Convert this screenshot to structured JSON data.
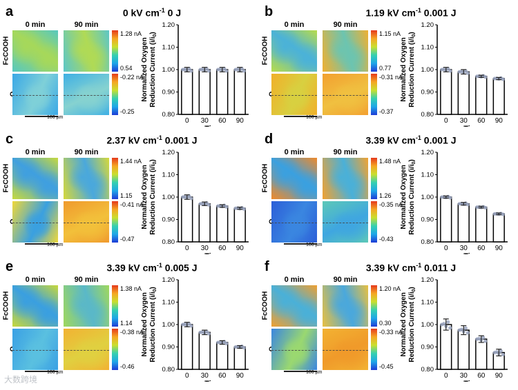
{
  "panels": [
    {
      "label": "a",
      "title_field": "0 kV cm",
      "title_rest": "0 J",
      "sup": "-1",
      "time_labels": [
        "0 min",
        "90 min"
      ],
      "top_row": "FcCOOH",
      "bottom_row": "O",
      "top_max": "1.28 nA",
      "top_min": "0.54",
      "bot_max": "-0.22 nA",
      "bot_min": "-0.25",
      "scale": "100 µm",
      "chart": {
        "type": "bar",
        "categories": [
          "0",
          "30",
          "60",
          "90"
        ],
        "values": [
          1.0,
          1.0,
          1.0,
          1.0
        ],
        "errors": [
          0.01,
          0.01,
          0.01,
          0.01
        ],
        "ylim": [
          0.8,
          1.2
        ],
        "yticks": [
          "0.80",
          "0.90",
          "1.00",
          "1.10",
          "1.20"
        ],
        "xlabel": "Time",
        "ylabel1": "Normalized Oxygen",
        "ylabel2": "Reduction Current (i/i",
        "ylabel3": ")"
      },
      "colors": {
        "t0a": "#56c8c0",
        "t0b": "#a6d85a",
        "t1a": "#5cc6c8",
        "t1b": "#b0da55",
        "b0a": "#3aa8e6",
        "b0b": "#7fd0d8",
        "b1a": "#3fb0e4",
        "b1b": "#86d2d0"
      }
    },
    {
      "label": "b",
      "title_field": "1.19 kV cm",
      "title_rest": "0.001 J",
      "sup": "-1",
      "time_labels": [
        "0 min",
        "90 min"
      ],
      "top_row": "FcCOOH",
      "bottom_row": "O",
      "top_max": "1.15 nA",
      "top_min": "0.77",
      "bot_max": "-0.31 nA",
      "bot_min": "-0.37",
      "scale": "100 µm",
      "chart": {
        "type": "bar",
        "categories": [
          "0",
          "30",
          "60",
          "90"
        ],
        "values": [
          1.0,
          0.99,
          0.97,
          0.96
        ],
        "errors": [
          0.01,
          0.01,
          0.005,
          0.005
        ],
        "ylim": [
          0.8,
          1.2
        ],
        "yticks": [
          "0.80",
          "0.90",
          "1.00",
          "1.10",
          "1.20"
        ],
        "xlabel": "Time",
        "ylabel1": "Normalized Oxygen",
        "ylabel2": "Reduction Current (i/i",
        "ylabel3": ")"
      },
      "colors": {
        "t0a": "#b8dc4a",
        "t0b": "#4bb2d8",
        "t1a": "#f0b030",
        "t1b": "#6cc4b0",
        "b0a": "#f0b02a",
        "b0b": "#d8d040",
        "b1a": "#f2a030",
        "b1b": "#f0c040"
      }
    },
    {
      "label": "c",
      "title_field": "2.37 kV cm",
      "title_rest": "0.001 J",
      "sup": "-1",
      "time_labels": [
        "0 min",
        "90 min"
      ],
      "top_row": "FcCOOH",
      "bottom_row": "O",
      "top_max": "1.44 nA",
      "top_min": "1.15",
      "bot_max": "-0.41 nA",
      "bot_min": "-0.47",
      "scale": "100 µm",
      "chart": {
        "type": "bar",
        "categories": [
          "0",
          "30",
          "60",
          "90"
        ],
        "values": [
          1.0,
          0.97,
          0.96,
          0.95
        ],
        "errors": [
          0.01,
          0.008,
          0.006,
          0.005
        ],
        "ylim": [
          0.8,
          1.2
        ],
        "yticks": [
          "0.80",
          "0.90",
          "1.00",
          "1.10",
          "1.20"
        ],
        "xlabel": "Time",
        "ylabel1": "Normalized Oxygen",
        "ylabel2": "Reduction Current (i/i",
        "ylabel3": ")"
      },
      "colors": {
        "t0a": "#c8da3c",
        "t0b": "#3f9fe0",
        "t1a": "#d6d83a",
        "t1b": "#4aa8dc",
        "b0a": "#f0d838",
        "b0b": "#3aa0e0",
        "b1a": "#f09a2e",
        "b1b": "#f2c03a"
      }
    },
    {
      "label": "d",
      "title_field": "3.39 kV cm",
      "title_rest": "0.001 J",
      "sup": "-1",
      "time_labels": [
        "0 min",
        "90 min"
      ],
      "top_row": "FcCOOH",
      "bottom_row": "O",
      "top_max": "1.48 nA",
      "top_min": "1.26",
      "bot_max": "-0.35 nA",
      "bot_min": "-0.43",
      "scale": "100 µm",
      "chart": {
        "type": "bar",
        "categories": [
          "0",
          "30",
          "60",
          "90"
        ],
        "values": [
          1.0,
          0.97,
          0.955,
          0.925
        ],
        "errors": [
          0.005,
          0.006,
          0.004,
          0.004
        ],
        "ylim": [
          0.8,
          1.2
        ],
        "yticks": [
          "0.80",
          "0.90",
          "1.00",
          "1.10",
          "1.20"
        ],
        "xlabel": "Time",
        "ylabel1": "Normalized Oxygen",
        "ylabel2": "Reduction Current (i/i",
        "ylabel3": ")"
      },
      "colors": {
        "t0a": "#f08a2a",
        "t0b": "#3aa0e0",
        "t1a": "#f2a230",
        "t1b": "#4ab0d8",
        "b0a": "#2c5fd8",
        "b0b": "#3a86e0",
        "b1a": "#5cc8b8",
        "b1b": "#3fa6e0"
      }
    },
    {
      "label": "e",
      "title_field": "3.39 kV cm",
      "title_rest": "0.005 J",
      "sup": "-1",
      "time_labels": [
        "0 min",
        "90 min"
      ],
      "top_row": "FcCOOH",
      "bottom_row": "O",
      "top_max": "1.38 nA",
      "top_min": "1.14",
      "bot_max": "-0.38 nA",
      "bot_min": "-0.46",
      "scale": "100 µm",
      "chart": {
        "type": "bar",
        "categories": [
          "0",
          "30",
          "60",
          "90"
        ],
        "values": [
          1.0,
          0.965,
          0.92,
          0.9
        ],
        "errors": [
          0.01,
          0.01,
          0.008,
          0.006
        ],
        "ylim": [
          0.8,
          1.2
        ],
        "yticks": [
          "0.80",
          "0.90",
          "1.00",
          "1.10",
          "1.20"
        ],
        "xlabel": "Time",
        "ylabel1": "Normalized Oxygen",
        "ylabel2": "Reduction Current (i/i",
        "ylabel3": ")"
      },
      "colors": {
        "t0a": "#c8d83a",
        "t0b": "#3a9fe0",
        "t1a": "#a0d85c",
        "t1b": "#5ab8c8",
        "b0a": "#3aa0e4",
        "b0b": "#5ac0e0",
        "b1a": "#f2b232",
        "b1b": "#e0d040"
      }
    },
    {
      "label": "f",
      "title_field": "3.39 kV cm",
      "title_rest": "0.011 J",
      "sup": "-1",
      "time_labels": [
        "0 min",
        "90 min"
      ],
      "top_row": "FcCOOH",
      "bottom_row": "O",
      "top_max": "1.20 nA",
      "top_min": "0.30",
      "bot_max": "-0.33 nA",
      "bot_min": "-0.45",
      "scale": "100 µm",
      "chart": {
        "type": "bar",
        "categories": [
          "0",
          "30",
          "60",
          "90"
        ],
        "values": [
          1.0,
          0.975,
          0.935,
          0.875
        ],
        "errors": [
          0.025,
          0.02,
          0.015,
          0.015
        ],
        "ylim": [
          0.8,
          1.2
        ],
        "yticks": [
          "0.80",
          "0.90",
          "1.00",
          "1.10",
          "1.20"
        ],
        "xlabel": "Time",
        "ylabel1": "Normalized Oxygen",
        "ylabel2": "Reduction Current (i/i",
        "ylabel3": ")"
      },
      "colors": {
        "t0a": "#f0a030",
        "t0b": "#4ab0d8",
        "t1a": "#e8c040",
        "t1b": "#4aa8dc",
        "b0a": "#3a86e0",
        "b0b": "#9ad870",
        "b1a": "#f2b232",
        "b1b": "#f09a2a"
      }
    }
  ],
  "watermark": "大数跨境"
}
